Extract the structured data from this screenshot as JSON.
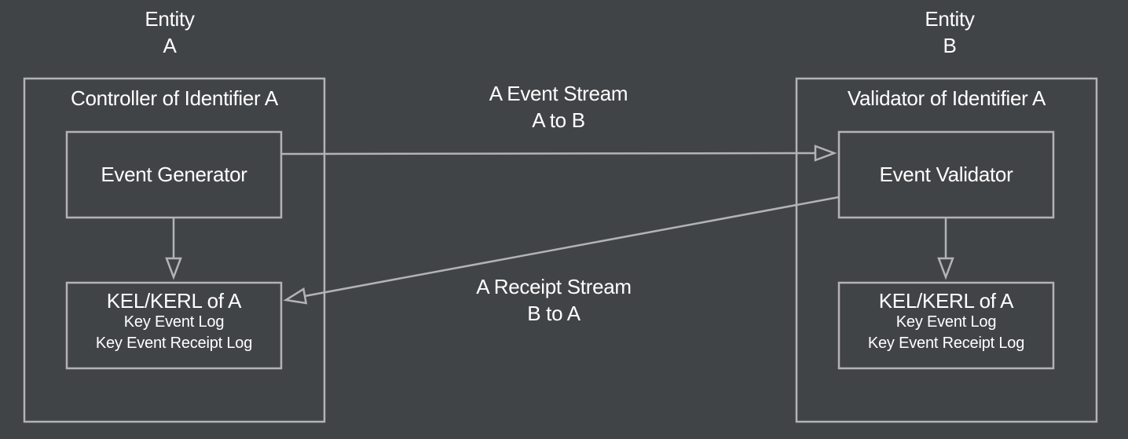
{
  "entity_a": {
    "label_line1": "Entity",
    "label_line2": "A",
    "container_title": "Controller of Identifier A",
    "generator_label": "Event Generator",
    "kel": {
      "title": "KEL/KERL of A",
      "line1": "Key Event Log",
      "line2": "Key Event Receipt Log"
    }
  },
  "entity_b": {
    "label_line1": "Entity",
    "label_line2": "B",
    "container_title": "Validator of Identifier A",
    "validator_label": "Event Validator",
    "kel": {
      "title": "KEL/KERL of A",
      "line1": "Key Event Log",
      "line2": "Key Event Receipt Log"
    }
  },
  "streams": {
    "event_stream": {
      "line1": "A Event Stream",
      "line2": "A to B"
    },
    "receipt_stream": {
      "line1": "A Receipt Stream",
      "line2": "B to A"
    }
  },
  "colors": {
    "background": "#414447",
    "stroke": "#b3b3b3",
    "text": "#ffffff"
  }
}
